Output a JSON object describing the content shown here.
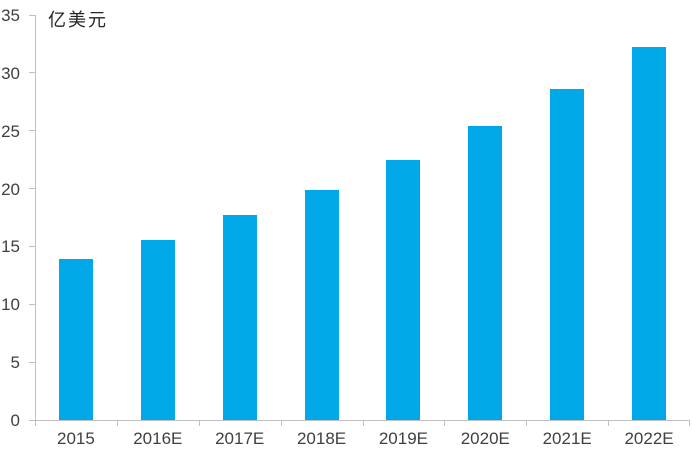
{
  "chart_data": {
    "type": "bar",
    "title": "",
    "unit_label": "亿美元",
    "categories": [
      "2015",
      "2016E",
      "2017E",
      "2018E",
      "2019E",
      "2020E",
      "2021E",
      "2022E"
    ],
    "values": [
      13.9,
      15.6,
      17.7,
      19.9,
      22.5,
      25.4,
      28.6,
      32.2
    ],
    "xlabel": "",
    "ylabel": "亿美元",
    "ylim": [
      0,
      35
    ],
    "yticks": [
      0,
      5,
      10,
      15,
      20,
      25,
      30,
      35
    ],
    "grid": false,
    "legend_position": "none",
    "colors": {
      "bar": "#00A8E8",
      "axis": "#BFBFBF",
      "tick_label": "#404040",
      "unit_label": "#262626",
      "background": "#FFFFFF"
    }
  }
}
